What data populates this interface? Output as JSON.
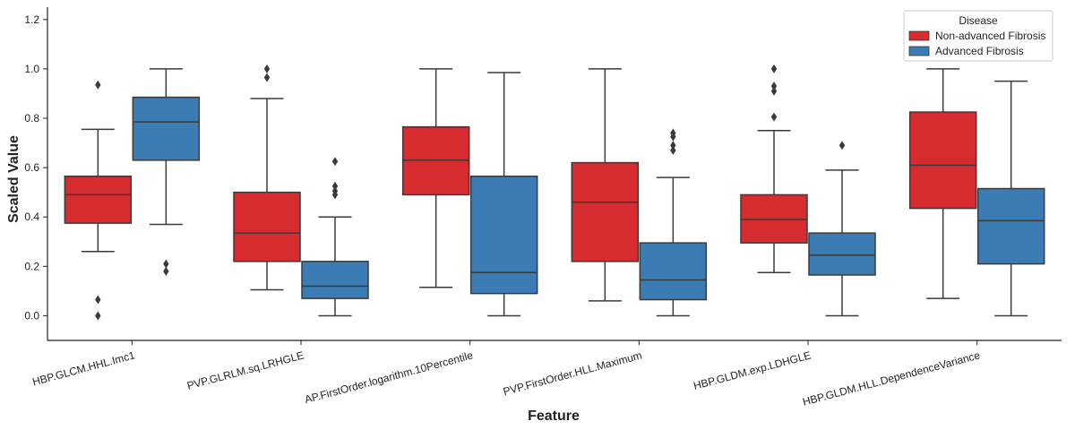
{
  "chart_data": {
    "type": "box",
    "xlabel": "Feature",
    "ylabel": "Scaled Value",
    "ylim": [
      -0.1,
      1.25
    ],
    "yticks": [
      0.0,
      0.2,
      0.4,
      0.6,
      0.8,
      1.0,
      1.2
    ],
    "ytick_labels": [
      "0.0",
      "0.2",
      "0.4",
      "0.6",
      "0.8",
      "1.0",
      "1.2"
    ],
    "grid": false,
    "legend": {
      "title": "Disease",
      "position": "top-right"
    },
    "categories": [
      "HBP.GLCM.HHL.Imc1",
      "PVP.GLRLM.sq.LRHGLE",
      "AP.FirstOrder.logarithm.10Percentile",
      "PVP.FirstOrder.HLL.Maximum",
      "HBP.GLDM.exp.LDHGLE",
      "HBP.GLDM.HLL.DependenceVariance"
    ],
    "series": [
      {
        "name": "Non-advanced Fibrosis",
        "color": "#d62b2f",
        "boxes": [
          {
            "whisker_low": 0.26,
            "q1": 0.375,
            "median": 0.49,
            "q3": 0.565,
            "whisker_high": 0.755,
            "outliers": [
              0.935,
              0.065,
              0.0
            ]
          },
          {
            "whisker_low": 0.105,
            "q1": 0.22,
            "median": 0.335,
            "q3": 0.5,
            "whisker_high": 0.88,
            "outliers": [
              1.0,
              0.965
            ]
          },
          {
            "whisker_low": 0.115,
            "q1": 0.49,
            "median": 0.63,
            "q3": 0.765,
            "whisker_high": 1.0,
            "outliers": []
          },
          {
            "whisker_low": 0.06,
            "q1": 0.22,
            "median": 0.46,
            "q3": 0.62,
            "whisker_high": 1.0,
            "outliers": []
          },
          {
            "whisker_low": 0.175,
            "q1": 0.295,
            "median": 0.39,
            "q3": 0.49,
            "whisker_high": 0.75,
            "outliers": [
              1.0,
              0.93,
              0.91,
              0.805
            ]
          },
          {
            "whisker_low": 0.07,
            "q1": 0.435,
            "median": 0.61,
            "q3": 0.825,
            "whisker_high": 1.0,
            "outliers": []
          }
        ]
      },
      {
        "name": "Advanced Fibrosis",
        "color": "#3b7cb5",
        "boxes": [
          {
            "whisker_low": 0.37,
            "q1": 0.63,
            "median": 0.785,
            "q3": 0.885,
            "whisker_high": 1.0,
            "outliers": [
              0.21,
              0.18
            ]
          },
          {
            "whisker_low": 0.0,
            "q1": 0.07,
            "median": 0.12,
            "q3": 0.22,
            "whisker_high": 0.4,
            "outliers": [
              0.625,
              0.525,
              0.505,
              0.49
            ]
          },
          {
            "whisker_low": 0.0,
            "q1": 0.09,
            "median": 0.175,
            "q3": 0.565,
            "whisker_high": 0.985,
            "outliers": []
          },
          {
            "whisker_low": 0.0,
            "q1": 0.065,
            "median": 0.145,
            "q3": 0.295,
            "whisker_high": 0.56,
            "outliers": [
              0.74,
              0.725,
              0.69,
              0.67
            ]
          },
          {
            "whisker_low": 0.0,
            "q1": 0.165,
            "median": 0.245,
            "q3": 0.335,
            "whisker_high": 0.59,
            "outliers": [
              0.69
            ]
          },
          {
            "whisker_low": 0.0,
            "q1": 0.21,
            "median": 0.385,
            "q3": 0.515,
            "whisker_high": 0.95,
            "outliers": []
          }
        ]
      }
    ]
  }
}
